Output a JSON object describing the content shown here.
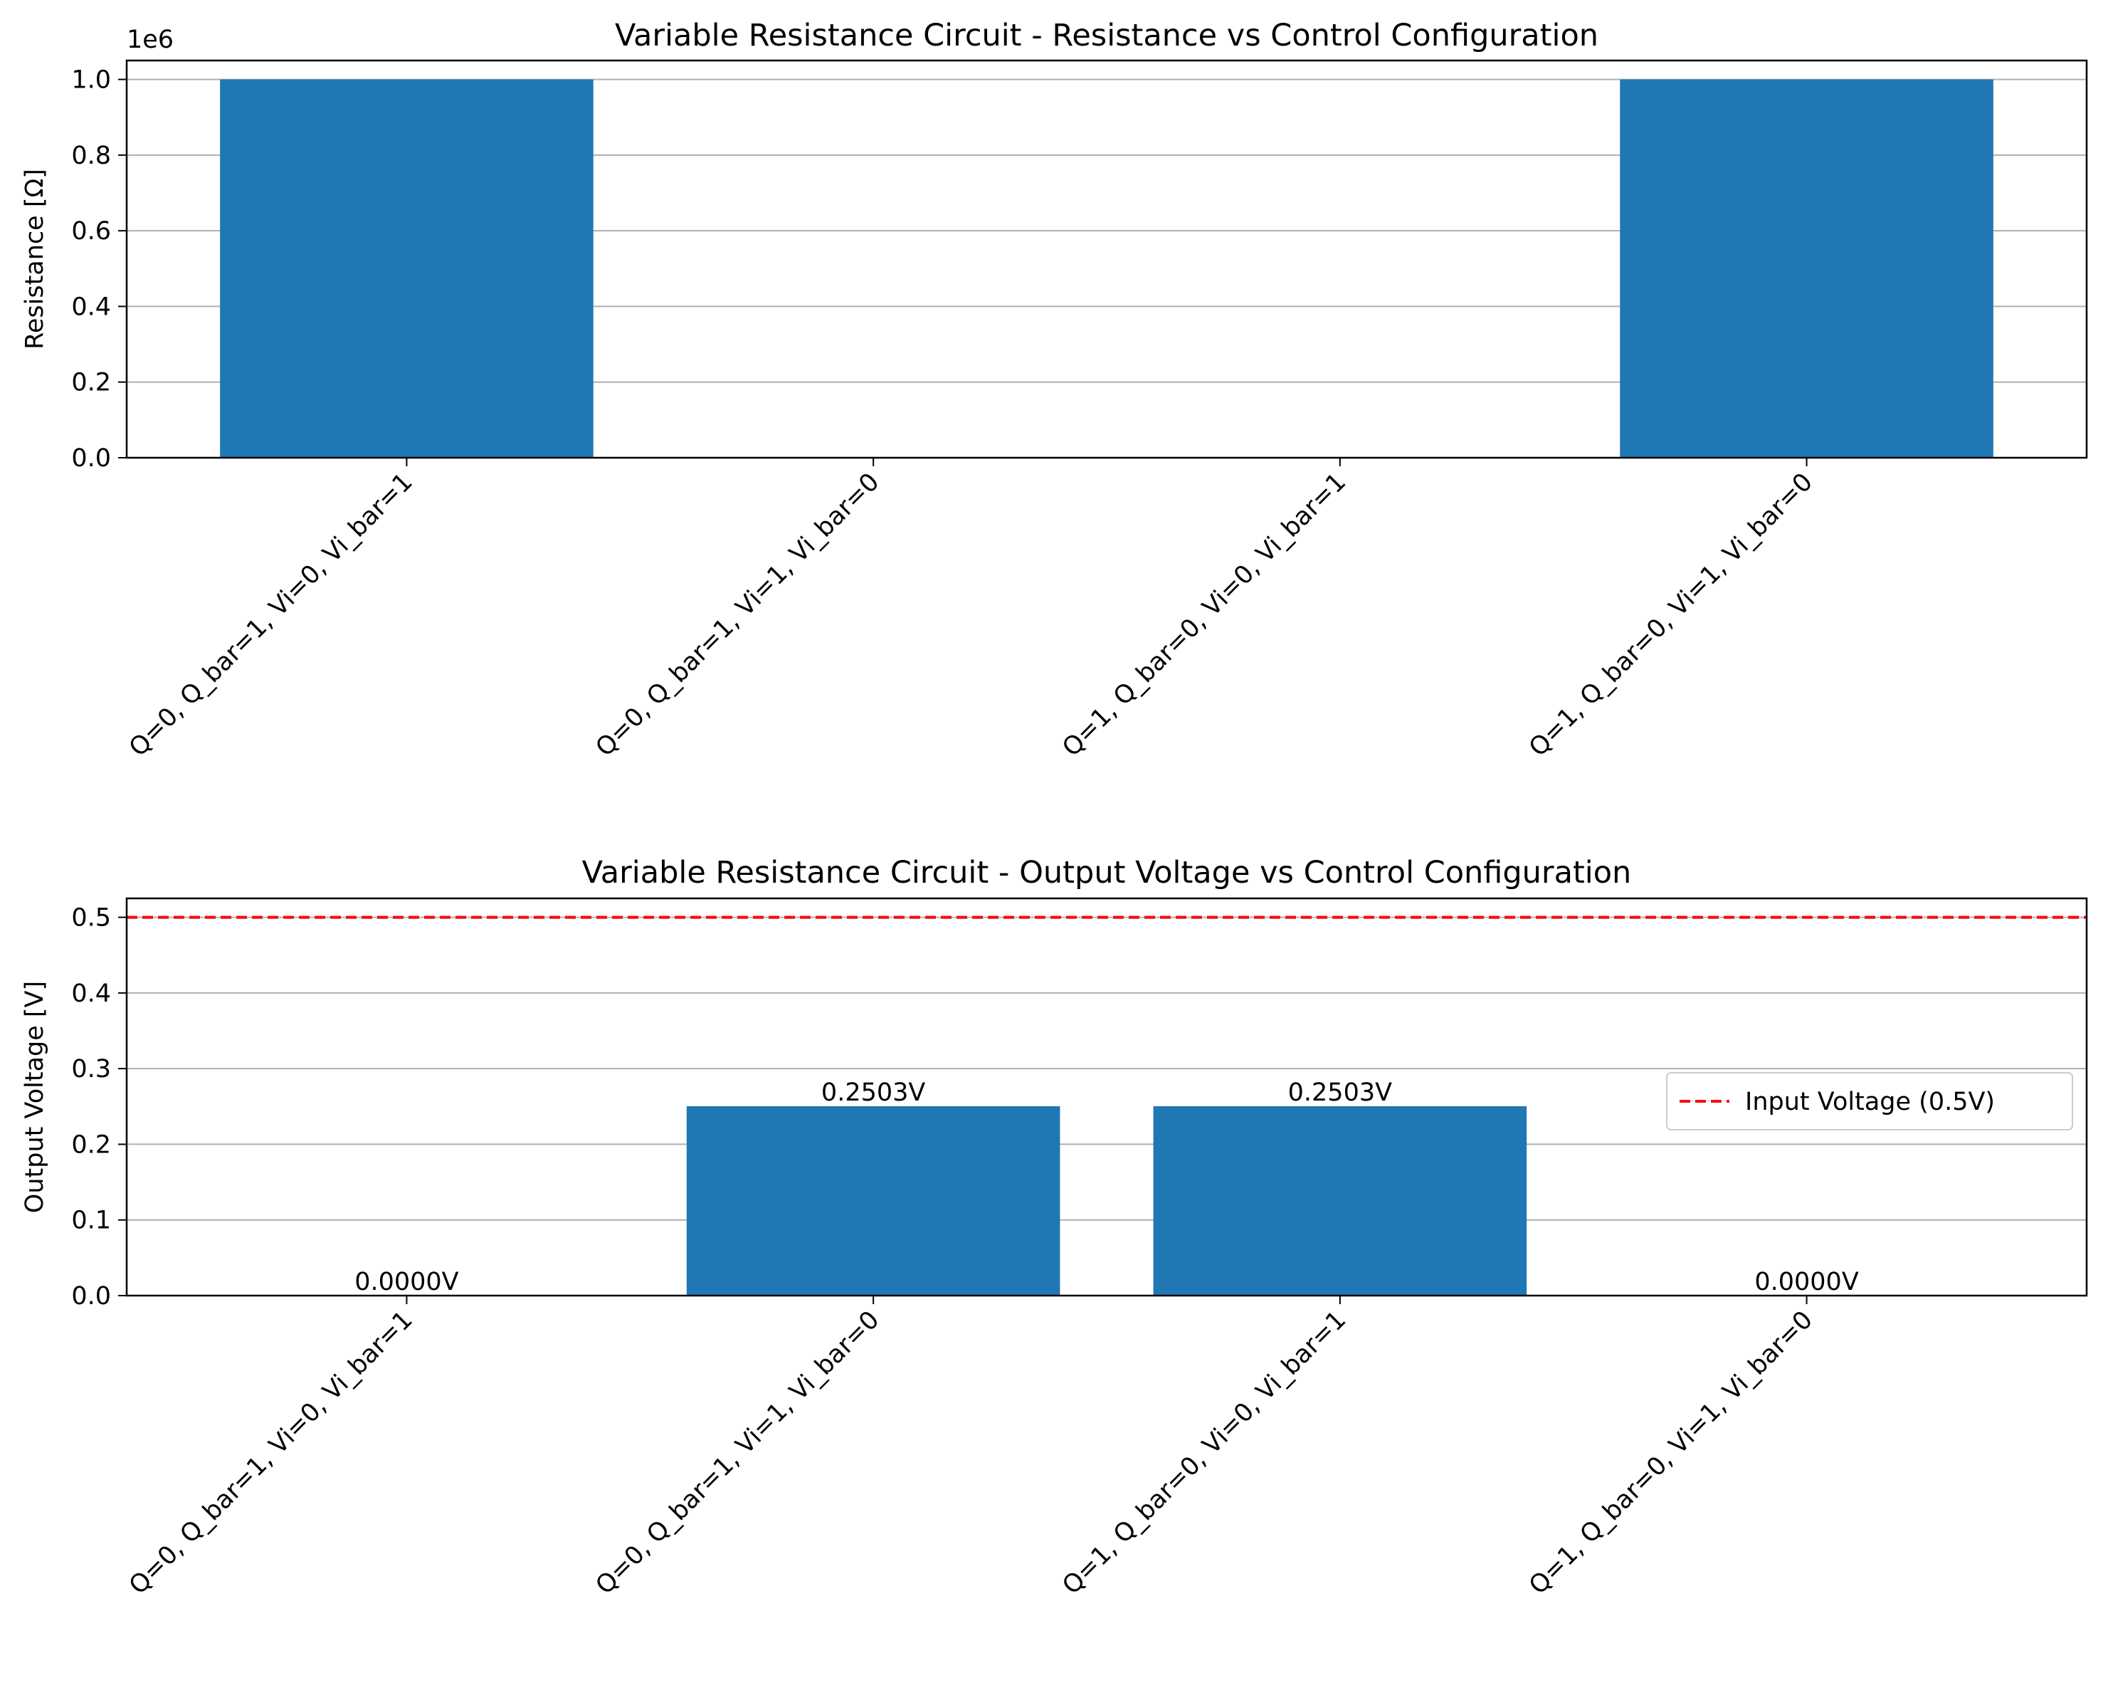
{
  "chart_data": [
    {
      "type": "bar",
      "title": "Variable Resistance Circuit - Resistance vs Control Configuration",
      "xlabel": "",
      "ylabel": "Resistance [Ω]",
      "offset_text": "1e6",
      "categories": [
        "Q=0, Q_bar=1, Vi=0, Vi_bar=1",
        "Q=0, Q_bar=1, Vi=1, Vi_bar=0",
        "Q=1, Q_bar=0, Vi=0, Vi_bar=1",
        "Q=1, Q_bar=0, Vi=1, Vi_bar=0"
      ],
      "values": [
        1000000,
        0,
        0,
        1000000
      ],
      "ylim": [
        0,
        1050000
      ],
      "yticks": [
        0,
        200000,
        400000,
        600000,
        800000,
        1000000
      ],
      "ytick_labels": [
        "0.0",
        "0.2",
        "0.4",
        "0.6",
        "0.8",
        "1.0"
      ],
      "grid": "y",
      "bar_color": "#1f77b4"
    },
    {
      "type": "bar",
      "title": "Variable Resistance Circuit - Output Voltage vs Control Configuration",
      "xlabel": "",
      "ylabel": "Output Voltage [V]",
      "categories": [
        "Q=0, Q_bar=1, Vi=0, Vi_bar=1",
        "Q=0, Q_bar=1, Vi=1, Vi_bar=0",
        "Q=1, Q_bar=0, Vi=0, Vi_bar=1",
        "Q=1, Q_bar=0, Vi=1, Vi_bar=0"
      ],
      "values": [
        0.0,
        0.2503,
        0.2503,
        0.0
      ],
      "bar_labels": [
        "0.0000V",
        "0.2503V",
        "0.2503V",
        "0.0000V"
      ],
      "ylim": [
        0,
        0.525
      ],
      "yticks": [
        0.0,
        0.1,
        0.2,
        0.3,
        0.4,
        0.5
      ],
      "ytick_labels": [
        "0.0",
        "0.1",
        "0.2",
        "0.3",
        "0.4",
        "0.5"
      ],
      "grid": "y",
      "bar_color": "#1f77b4",
      "reference_line": {
        "value": 0.5,
        "color": "#ff0000",
        "style": "dashed",
        "label": "Input Voltage (0.5V)"
      },
      "legend_position": "center-right"
    }
  ]
}
